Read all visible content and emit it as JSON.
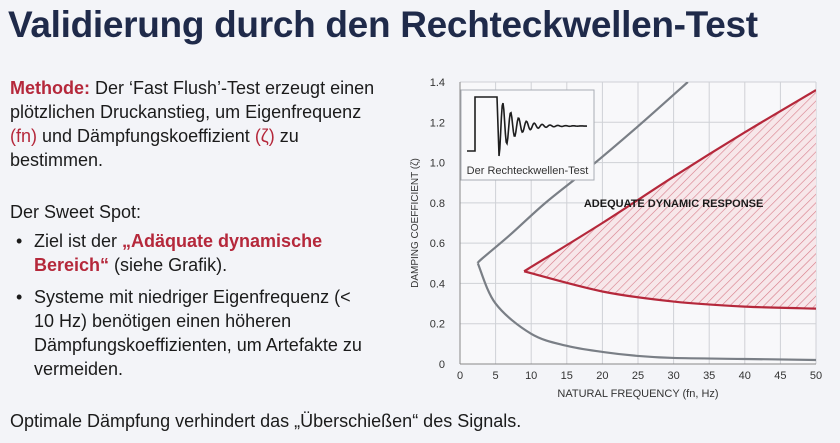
{
  "slide": {
    "title": "Validierung durch den Rechteckwellen-Test",
    "method_label": "Methode:",
    "method_text_1": " Der ‘Fast Flush’-Test erzeugt einen plötzlichen Druckanstieg, um Eigenfrequenz ",
    "fn_symbol": "(fn)",
    "method_text_2": " und Dämpfungskoeffizient ",
    "zeta_symbol": "(ζ)",
    "method_text_3": " zu bestimmen.",
    "sweet_spot_heading": "Der Sweet Spot:",
    "bullet1_pre": "Ziel ist der ",
    "bullet1_highlight": "„Adäquate dynamische Bereich“",
    "bullet1_post": " (siehe Grafik).",
    "bullet2": "Systeme mit niedriger Eigenfrequenz (< 10 Hz) benötigen einen höheren Dämpfungskoeffizienten, um Artefakte zu vermeiden.",
    "bullet_glyph": "•",
    "footer": "Optimale Dämpfung verhindert das „Überschießen“ des Signals."
  },
  "colors": {
    "title": "#1f2a4a",
    "accent_red": "#b5283b",
    "curve_gray": "#7a7f86",
    "grid": "#cfd1d6"
  },
  "chart_data": {
    "type": "line",
    "xlabel": "NATURAL FREQUENCY (fn, Hz)",
    "ylabel": "DAMPING COEFFICIENT (ζ)",
    "xlim": [
      0,
      50
    ],
    "ylim": [
      0,
      1.4
    ],
    "x_ticks": [
      0,
      5,
      10,
      15,
      20,
      25,
      30,
      35,
      40,
      45,
      50
    ],
    "y_ticks": [
      0,
      0.2,
      0.4,
      0.6,
      0.8,
      1.0,
      1.2,
      1.4
    ],
    "y_tick_labels": [
      "0",
      "0.2",
      "0.4",
      "0.6",
      "0.8",
      "1.0",
      "1.2",
      "1.4"
    ],
    "grid": true,
    "region_label": "ADEQUATE DYNAMIC RESPONSE",
    "inset_caption": "Der Rechteckwellen-Test",
    "series": [
      {
        "x": [
          32,
          25,
          18,
          12,
          7,
          3,
          2.5
        ],
        "y": [
          1.4,
          1.18,
          0.97,
          0.8,
          0.64,
          0.52,
          0.5
        ]
      },
      {
        "x": [
          2.5,
          5,
          10,
          15,
          20,
          25,
          30,
          40,
          50
        ],
        "y": [
          0.5,
          0.3,
          0.15,
          0.09,
          0.06,
          0.04,
          0.03,
          0.025,
          0.02
        ]
      },
      {
        "x": [
          9,
          20,
          30,
          40,
          50
        ],
        "y": [
          0.46,
          0.7,
          0.93,
          1.15,
          1.36
        ]
      },
      {
        "x": [
          9,
          20,
          30,
          40,
          50
        ],
        "y": [
          0.46,
          0.36,
          0.31,
          0.285,
          0.275
        ]
      }
    ]
  }
}
